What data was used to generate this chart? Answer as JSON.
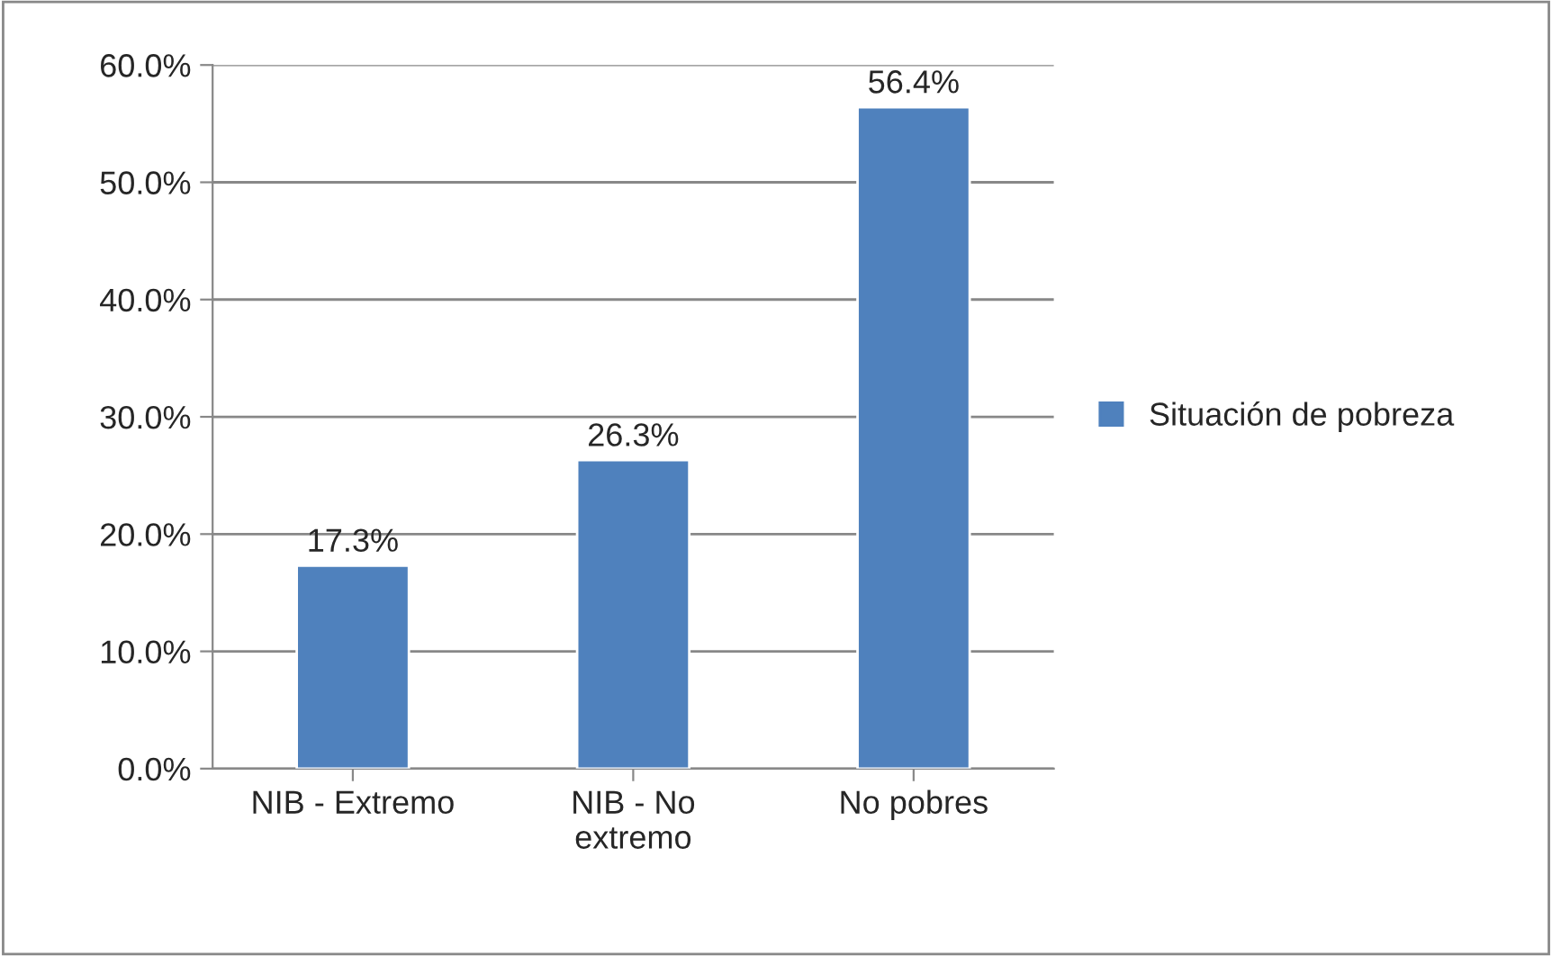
{
  "chart_data": {
    "type": "bar",
    "categories": [
      "NIB - Extremo",
      "NIB - No\nextremo",
      "No pobres"
    ],
    "series": [
      {
        "name": "Situación de pobreza",
        "color": "#4f81bd",
        "values": [
          17.3,
          26.3,
          56.4
        ],
        "value_labels": [
          "17.3%",
          "26.3%",
          "56.4%"
        ]
      }
    ],
    "ylim": [
      0,
      60
    ],
    "yticks": [
      {
        "value": 0,
        "label": "0.0%"
      },
      {
        "value": 10,
        "label": "10.0%"
      },
      {
        "value": 20,
        "label": "20.0%"
      },
      {
        "value": 30,
        "label": "30.0%"
      },
      {
        "value": 40,
        "label": "40.0%"
      },
      {
        "value": 50,
        "label": "50.0%"
      },
      {
        "value": 60,
        "label": "60.0%"
      }
    ],
    "grid": "y",
    "legend": "right"
  }
}
